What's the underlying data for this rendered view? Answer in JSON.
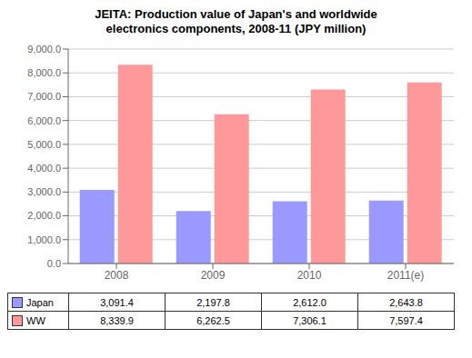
{
  "chart_data": {
    "type": "bar",
    "title": "JEITA: Production value of Japan's and worldwide\nelectronics components, 2008-11 (JPY million)",
    "categories": [
      "2008",
      "2009",
      "2010",
      "2011(e)"
    ],
    "series": [
      {
        "name": "Japan",
        "color": "#9999ff",
        "values": [
          3091.4,
          2197.8,
          2612.0,
          2643.8
        ],
        "value_labels": [
          "3,091.4",
          "2,197.8",
          "2,612.0",
          "2,643.8"
        ]
      },
      {
        "name": "WW",
        "color": "#ff9999",
        "values": [
          8339.9,
          6262.5,
          7306.1,
          7597.4
        ],
        "value_labels": [
          "8,339.9",
          "6,262.5",
          "7,306.1",
          "7,597.4"
        ]
      }
    ],
    "ylim": [
      0,
      9000
    ],
    "yticks": [
      {
        "value": 0,
        "label": "0.0"
      },
      {
        "value": 1000,
        "label": "1,000.0"
      },
      {
        "value": 2000,
        "label": "2,000.0"
      },
      {
        "value": 3000,
        "label": "3,000.0"
      },
      {
        "value": 4000,
        "label": "4,000.0"
      },
      {
        "value": 5000,
        "label": "5,000.0"
      },
      {
        "value": 6000,
        "label": "6,000.0"
      },
      {
        "value": 7000,
        "label": "7,000.0"
      },
      {
        "value": 8000,
        "label": "8,000.0"
      },
      {
        "value": 9000,
        "label": "9,000.0"
      }
    ],
    "grid": true
  }
}
